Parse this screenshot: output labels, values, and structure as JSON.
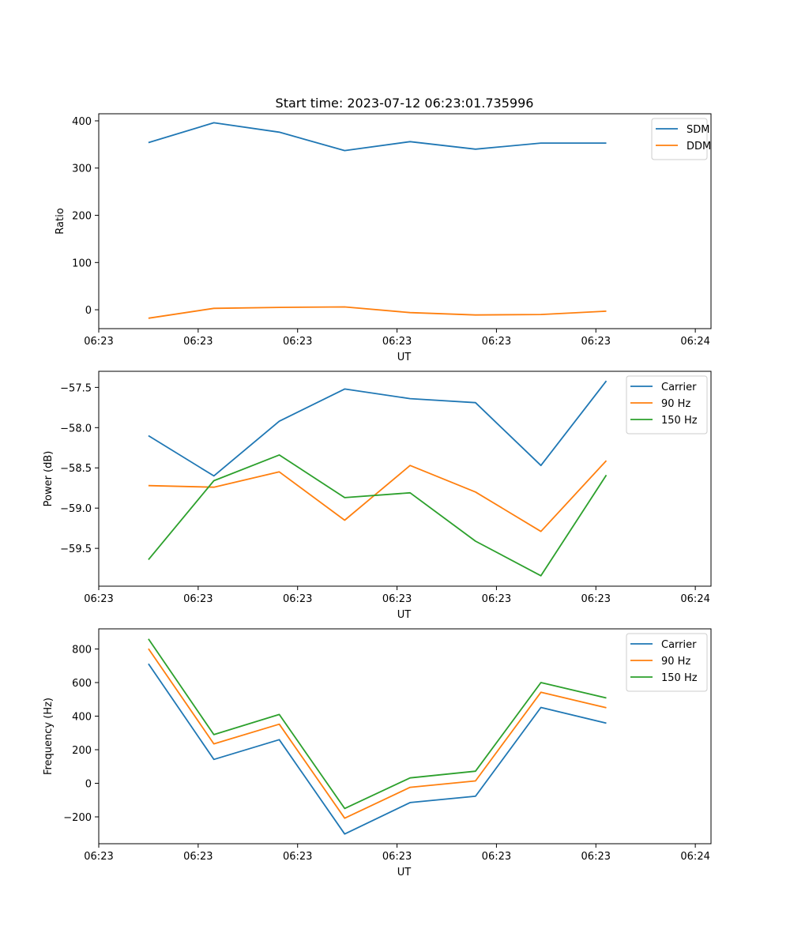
{
  "chart_data": [
    {
      "type": "line",
      "title": "Start time: 2023-07-12 06:23:01.735996",
      "xlabel": "UT",
      "ylabel": "Ratio",
      "x": [
        0,
        1,
        2,
        3,
        4,
        5,
        6,
        7
      ],
      "xlim": [
        -0.76,
        8.6
      ],
      "xticks": [
        -0.76,
        0.76,
        2.28,
        3.8,
        5.32,
        6.84,
        8.36
      ],
      "xtick_labels": [
        "06:23",
        "06:23",
        "06:23",
        "06:23",
        "06:23",
        "06:23",
        "06:24"
      ],
      "ylim": [
        -40,
        415
      ],
      "yticks": [
        0,
        100,
        200,
        300,
        400
      ],
      "ytick_labels": [
        "0",
        "100",
        "200",
        "300",
        "400"
      ],
      "legend": "top-right",
      "series": [
        {
          "name": "SDM",
          "color": "#1f77b4",
          "values": [
            354,
            396,
            376,
            337,
            356,
            340,
            353,
            353
          ]
        },
        {
          "name": "DDM",
          "color": "#ff7f0e",
          "values": [
            -18,
            3,
            5,
            6,
            -6,
            -11,
            -10,
            -3
          ]
        }
      ]
    },
    {
      "type": "line",
      "title": "",
      "xlabel": "UT",
      "ylabel": "Power (dB)",
      "x": [
        0,
        1,
        2,
        3,
        4,
        5,
        6,
        7
      ],
      "xlim": [
        -0.76,
        8.6
      ],
      "xticks": [
        -0.76,
        0.76,
        2.28,
        3.8,
        5.32,
        6.84,
        8.36
      ],
      "xtick_labels": [
        "06:23",
        "06:23",
        "06:23",
        "06:23",
        "06:23",
        "06:23",
        "06:24"
      ],
      "ylim": [
        -59.97,
        -57.3
      ],
      "yticks": [
        -59.5,
        -59.0,
        -58.5,
        -58.0,
        -57.5
      ],
      "ytick_labels": [
        "−59.5",
        "−59.0",
        "−58.5",
        "−58.0",
        "−57.5"
      ],
      "legend": "top-right",
      "series": [
        {
          "name": "Carrier",
          "color": "#1f77b4",
          "values": [
            -58.1,
            -58.6,
            -57.92,
            -57.52,
            -57.64,
            -57.69,
            -58.47,
            -57.42
          ]
        },
        {
          "name": "90 Hz",
          "color": "#ff7f0e",
          "values": [
            -58.72,
            -58.74,
            -58.55,
            -59.15,
            -58.47,
            -58.8,
            -59.29,
            -58.41
          ]
        },
        {
          "name": "150 Hz",
          "color": "#2ca02c",
          "values": [
            -59.64,
            -58.66,
            -58.34,
            -58.87,
            -58.81,
            -59.41,
            -59.84,
            -58.59
          ]
        }
      ]
    },
    {
      "type": "line",
      "title": "",
      "xlabel": "UT",
      "ylabel": "Frequency (Hz)",
      "x": [
        0,
        1,
        2,
        3,
        4,
        5,
        6,
        7
      ],
      "xlim": [
        -0.76,
        8.6
      ],
      "xticks": [
        -0.76,
        0.76,
        2.28,
        3.8,
        5.32,
        6.84,
        8.36
      ],
      "xtick_labels": [
        "06:23",
        "06:23",
        "06:23",
        "06:23",
        "06:23",
        "06:23",
        "06:24"
      ],
      "ylim": [
        -360,
        920
      ],
      "yticks": [
        -200,
        0,
        200,
        400,
        600,
        800
      ],
      "ytick_labels": [
        "−200",
        "0",
        "200",
        "400",
        "600",
        "800"
      ],
      "legend": "top-right",
      "series": [
        {
          "name": "Carrier",
          "color": "#1f77b4",
          "values": [
            712,
            142,
            260,
            -302,
            -115,
            -77,
            452,
            358
          ]
        },
        {
          "name": "90 Hz",
          "color": "#ff7f0e",
          "values": [
            802,
            235,
            352,
            -208,
            -24,
            14,
            542,
            450
          ]
        },
        {
          "name": "150 Hz",
          "color": "#2ca02c",
          "values": [
            860,
            290,
            410,
            -150,
            32,
            72,
            600,
            508
          ]
        }
      ]
    }
  ]
}
